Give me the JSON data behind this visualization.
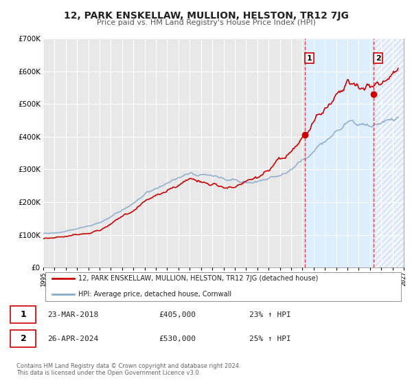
{
  "title": "12, PARK ENSKELLAW, MULLION, HELSTON, TR12 7JG",
  "subtitle": "Price paid vs. HM Land Registry's House Price Index (HPI)",
  "background_color": "#ffffff",
  "plot_bg_color": "#e8e8e8",
  "grid_color": "#ffffff",
  "red_color": "#cc0000",
  "blue_color": "#88aacc",
  "shade1_color": "#ddeeff",
  "shade2_color": "#eef4ff",
  "sale1_year": 2018.22,
  "sale1_price": 405000,
  "sale1_label": "23-MAR-2018",
  "sale1_amount": "£405,000",
  "sale1_hpi": "23% ↑ HPI",
  "sale2_year": 2024.32,
  "sale2_price": 530000,
  "sale2_label": "26-APR-2024",
  "sale2_amount": "£530,000",
  "sale2_hpi": "25% ↑ HPI",
  "xmin": 1995,
  "xmax": 2027,
  "ymin": 0,
  "ymax": 700000,
  "legend_line1": "12, PARK ENSKELLAW, MULLION, HELSTON, TR12 7JG (detached house)",
  "legend_line2": "HPI: Average price, detached house, Cornwall",
  "footer1": "Contains HM Land Registry data © Crown copyright and database right 2024.",
  "footer2": "This data is licensed under the Open Government Licence v3.0."
}
